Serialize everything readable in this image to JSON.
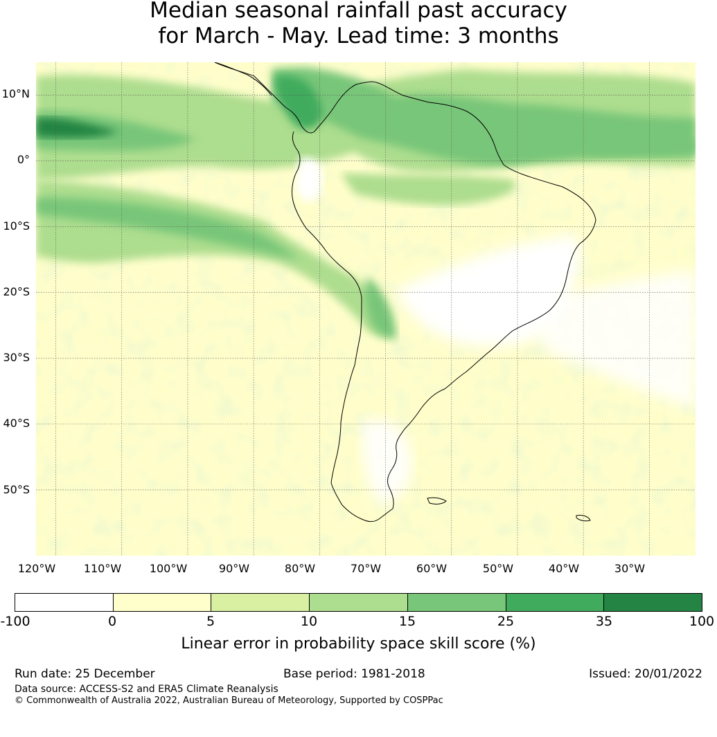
{
  "title": {
    "line1": "Median seasonal rainfall past accuracy",
    "line2": "for March - May. Lead time: 3 months"
  },
  "map": {
    "lat_labels": [
      "10°N",
      "0°",
      "10°S",
      "20°S",
      "30°S",
      "40°S",
      "50°S"
    ],
    "lon_labels": [
      "120°W",
      "110°W",
      "100°W",
      "90°W",
      "80°W",
      "70°W",
      "60°W",
      "50°W",
      "40°W",
      "30°W"
    ],
    "extent": {
      "lon_min": -123,
      "lon_max": -23,
      "lat_min": -60,
      "lat_max": 15
    },
    "colors": {
      "land_outline": "#000000",
      "gridline": "#555555"
    }
  },
  "colorbar": {
    "ticks": [
      "-100",
      "0",
      "5",
      "10",
      "15",
      "25",
      "35",
      "100"
    ],
    "colors": [
      "#ffffff",
      "#ffffcc",
      "#d9f0a3",
      "#addd8e",
      "#78c679",
      "#41ab5d",
      "#238443"
    ],
    "label": "Linear error in probability space skill score (%)"
  },
  "footer": {
    "run_date": "Run date: 25 December",
    "base_period": "Base period: 1981-2018",
    "issued": "Issued: 20/01/2022",
    "data_source": "Data source: ACCESS-S2 and ERA5 Climate Reanalysis",
    "copyright": "© Commonwealth of Australia 2022, Australian Bureau of Meteorology, Supported by COSPPac"
  }
}
